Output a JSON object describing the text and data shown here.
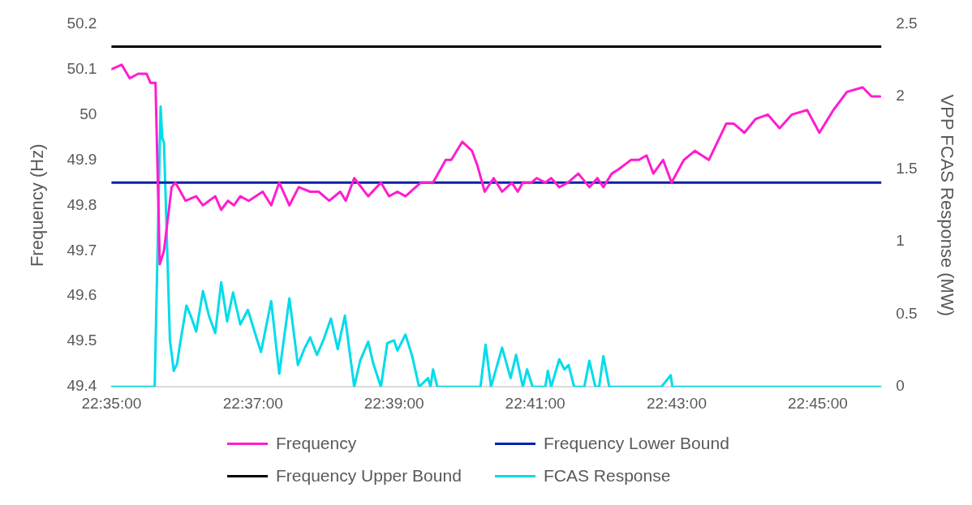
{
  "chart_data": {
    "type": "line",
    "xlabel": null,
    "ylabel": "Frequency (Hz)",
    "y2label": "VPP FCAS Response (MW)",
    "xlim": [
      22.5833,
      22.765
    ],
    "xticks": [
      {
        "value": 22.5833,
        "label": "22:35:00"
      },
      {
        "value": 22.6167,
        "label": "22:37:00"
      },
      {
        "value": 22.65,
        "label": "22:39:00"
      },
      {
        "value": 22.6833,
        "label": "22:41:00"
      },
      {
        "value": 22.7167,
        "label": "22:43:00"
      },
      {
        "value": 22.75,
        "label": "22:45:00"
      }
    ],
    "ylim": [
      49.4,
      50.2
    ],
    "yticks": [
      49.4,
      49.5,
      49.6,
      49.7,
      49.8,
      49.9,
      50,
      50.1,
      50.2
    ],
    "y2lim": [
      0,
      2.5
    ],
    "y2ticks": [
      0,
      0.5,
      1,
      1.5,
      2,
      2.5
    ],
    "grid": false,
    "legend": "bottom",
    "marker": "none",
    "line_style": "solid",
    "series": [
      {
        "name": "Frequency",
        "color": "#ff1dce",
        "x": [
          22.5833,
          22.5857,
          22.5876,
          22.5896,
          22.5916,
          22.5925,
          22.5933,
          22.5937,
          22.5947,
          22.5957,
          22.5975,
          22.5984,
          22.6008,
          22.6033,
          22.6049,
          22.6078,
          22.6092,
          22.6108,
          22.6122,
          22.6137,
          22.6157,
          22.619,
          22.621,
          22.6229,
          22.6253,
          22.6275,
          22.6302,
          22.6322,
          22.6347,
          22.6373,
          22.6386,
          22.6406,
          22.6439,
          22.6469,
          22.6488,
          22.6508,
          22.6527,
          22.6563,
          22.6592,
          22.6622,
          22.6635,
          22.6661,
          22.6684,
          22.6696,
          22.6714,
          22.6735,
          22.6755,
          22.6778,
          22.6792,
          22.6804,
          22.6824,
          22.6837,
          22.6857,
          22.6871,
          22.689,
          22.691,
          22.6935,
          22.6961,
          22.698,
          22.6994,
          22.7014,
          22.7031,
          22.7059,
          22.7078,
          22.7096,
          22.7112,
          22.7135,
          22.7155,
          22.7184,
          22.721,
          22.7243,
          22.7284,
          22.7302,
          22.7327,
          22.7353,
          22.7382,
          22.741,
          22.7439,
          22.7475,
          22.7504,
          22.7537,
          22.7569,
          22.7606,
          22.7627,
          22.7647
        ],
        "values": [
          50.1,
          50.11,
          50.08,
          50.09,
          50.09,
          50.07,
          50.07,
          50.07,
          49.67,
          49.7,
          49.84,
          49.85,
          49.81,
          49.82,
          49.8,
          49.82,
          49.79,
          49.81,
          49.8,
          49.82,
          49.81,
          49.83,
          49.8,
          49.85,
          49.8,
          49.84,
          49.83,
          49.83,
          49.81,
          49.83,
          49.81,
          49.86,
          49.82,
          49.85,
          49.82,
          49.83,
          49.82,
          49.85,
          49.85,
          49.9,
          49.9,
          49.94,
          49.92,
          49.89,
          49.83,
          49.86,
          49.83,
          49.85,
          49.83,
          49.85,
          49.85,
          49.86,
          49.85,
          49.86,
          49.84,
          49.85,
          49.87,
          49.84,
          49.86,
          49.84,
          49.87,
          49.88,
          49.9,
          49.9,
          49.91,
          49.87,
          49.9,
          49.85,
          49.9,
          49.92,
          49.9,
          49.98,
          49.98,
          49.96,
          49.99,
          50.0,
          49.97,
          50.0,
          50.01,
          49.96,
          50.01,
          50.05,
          50.06,
          50.04,
          50.04
        ]
      },
      {
        "name": "Frequency Lower Bound",
        "color": "#0022a8",
        "x": [
          22.5833,
          22.765
        ],
        "values": [
          49.85,
          49.85
        ]
      },
      {
        "name": "Frequency Upper Bound",
        "color": "#000000",
        "x": [
          22.5833,
          22.765
        ],
        "values": [
          50.15,
          50.15
        ]
      },
      {
        "name": "FCAS Response",
        "color": "#00dceb",
        "axis": "y2",
        "x": [
          22.5833,
          22.5935,
          22.5949,
          22.5953,
          22.5957,
          22.5971,
          22.598,
          22.5988,
          22.5994,
          22.601,
          22.602,
          22.6033,
          22.6049,
          22.6063,
          22.6078,
          22.6092,
          22.6106,
          22.612,
          22.6137,
          22.6155,
          22.6175,
          22.6186,
          22.621,
          22.6229,
          22.6253,
          22.6273,
          22.6288,
          22.6302,
          22.6318,
          22.6333,
          22.6351,
          22.6367,
          22.6384,
          22.6406,
          22.642,
          22.6439,
          22.6451,
          22.6469,
          22.6484,
          22.65,
          22.6508,
          22.6527,
          22.6543,
          22.6559,
          22.658,
          22.6586,
          22.6592,
          22.6602,
          22.6704,
          22.6716,
          22.6729,
          22.6755,
          22.6775,
          22.6788,
          22.6804,
          22.6814,
          22.6827,
          22.6857,
          22.6863,
          22.6871,
          22.689,
          22.6902,
          22.6912,
          22.6925,
          22.6949,
          22.6961,
          22.6975,
          22.6984,
          22.6994,
          22.7008,
          22.7131,
          22.7153,
          22.7157,
          22.7647
        ],
        "values": [
          0,
          0,
          1.93,
          1.71,
          1.68,
          0.32,
          0.11,
          0.16,
          0.28,
          0.56,
          0.49,
          0.38,
          0.66,
          0.49,
          0.37,
          0.72,
          0.45,
          0.65,
          0.43,
          0.53,
          0.34,
          0.24,
          0.59,
          0.09,
          0.61,
          0.15,
          0.26,
          0.34,
          0.22,
          0.32,
          0.47,
          0.26,
          0.49,
          0,
          0.18,
          0.31,
          0.16,
          0,
          0.3,
          0.32,
          0.25,
          0.36,
          0.21,
          0,
          0.06,
          0,
          0.12,
          0,
          0,
          0.29,
          0,
          0.27,
          0.06,
          0.22,
          0,
          0.12,
          0,
          0,
          0.11,
          0,
          0.19,
          0.12,
          0.15,
          0,
          0,
          0.18,
          0,
          0,
          0.21,
          0,
          0,
          0.08,
          0,
          0
        ]
      }
    ]
  }
}
